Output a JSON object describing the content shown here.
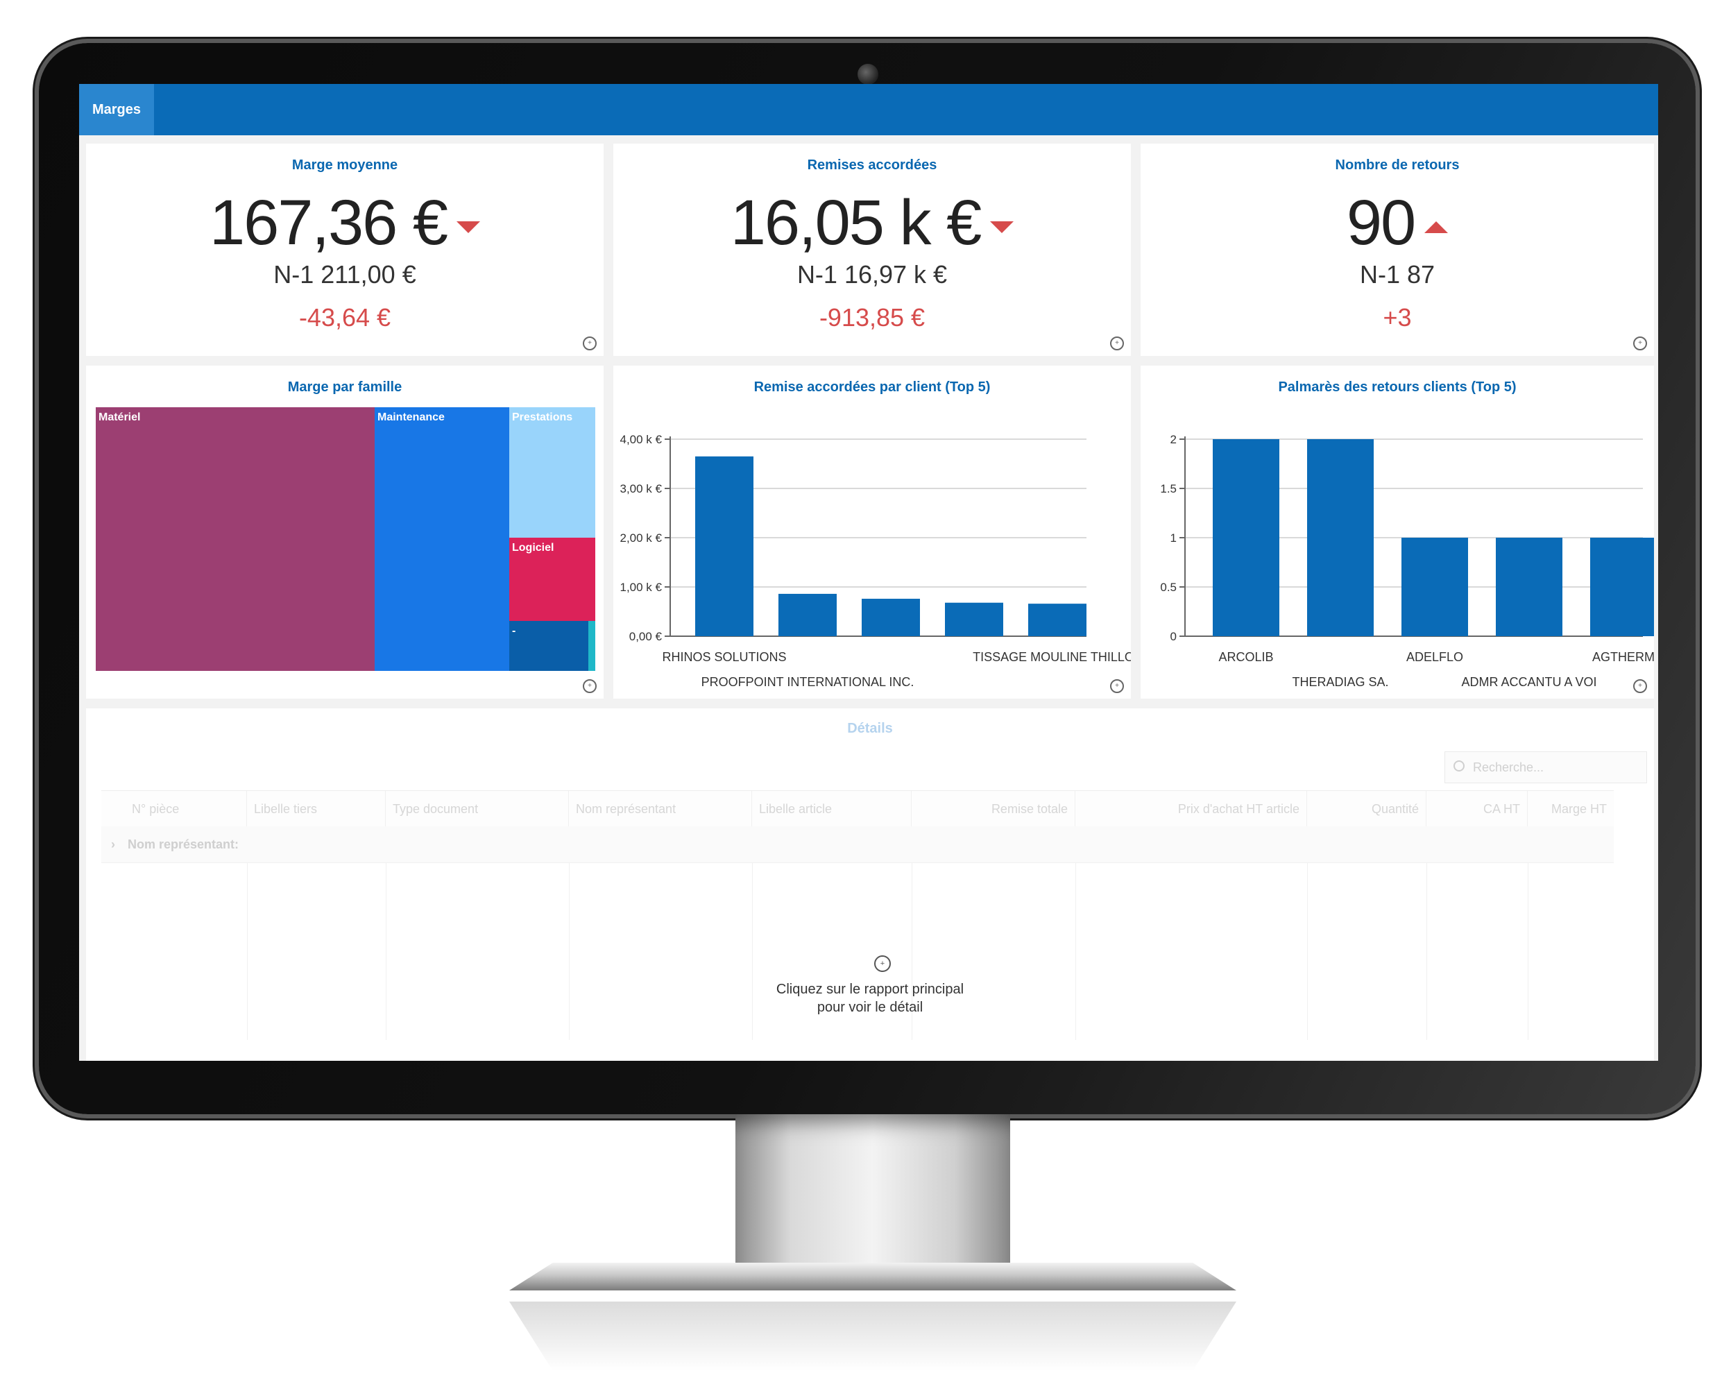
{
  "tab": {
    "label": "Marges"
  },
  "kpis": [
    {
      "title": "Marge moyenne",
      "value": "167,36 €",
      "trend": "down",
      "previous": "N-1 211,00 €",
      "delta": "-43,64 €"
    },
    {
      "title": "Remises accordées",
      "value": "16,05 k €",
      "trend": "down",
      "previous": "N-1 16,97 k €",
      "delta": "-913,85 €"
    },
    {
      "title": "Nombre de retours",
      "value": "90",
      "trend": "up",
      "previous": "N-1 87",
      "delta": "+3"
    }
  ],
  "treemap": {
    "title": "Marge par famille",
    "tiles": [
      {
        "label": "Matériel",
        "color": "#9c3f72"
      },
      {
        "label": "Maintenance",
        "color": "#1877e6"
      },
      {
        "label": "Prestations",
        "color": "#99d4fb"
      },
      {
        "label": "Logiciel",
        "color": "#dc2259"
      },
      {
        "label": "-",
        "color": "#0a5ea8"
      }
    ]
  },
  "chart_data": [
    {
      "type": "bar",
      "title": "Remise accordées par client (Top 5)",
      "categories": [
        "RHINOS SOLUTIONS",
        "PROOFPOINT INTERNATIONAL INC.",
        "",
        "",
        "TISSAGE MOULINE THILLOT"
      ],
      "values": [
        3650,
        860,
        760,
        680,
        660
      ],
      "ylim": [
        0,
        4000
      ],
      "yticks": [
        "0,00 €",
        "1,00 k €",
        "2,00 k €",
        "3,00 k €",
        "4,00 k €"
      ],
      "color": "#0a6bb7",
      "grid": true
    },
    {
      "type": "bar",
      "title": "Palmarès des retours clients (Top 5)",
      "categories": [
        "ARCOLIB",
        "THERADIAG SA.",
        "ADELFLO",
        "ADMR ACCANTU A VOI",
        "AGTHERM"
      ],
      "values": [
        2,
        2,
        1,
        1,
        1
      ],
      "ylim": [
        0,
        2
      ],
      "yticks": [
        "0",
        "0.5",
        "1",
        "1.5",
        "2"
      ],
      "color": "#0a6bb7",
      "grid": true
    }
  ],
  "details": {
    "title": "Détails",
    "search_placeholder": "Recherche...",
    "columns": [
      "N° pièce",
      "Libelle tiers",
      "Type document",
      "Nom représentant",
      "Libelle article",
      "Remise totale",
      "Prix d'achat HT article",
      "Quantité",
      "CA HT",
      "Marge HT"
    ],
    "group_label": "Nom représentant:",
    "empty_line1": "Cliquez sur le rapport principal",
    "empty_line2": "pour voir le détail"
  }
}
